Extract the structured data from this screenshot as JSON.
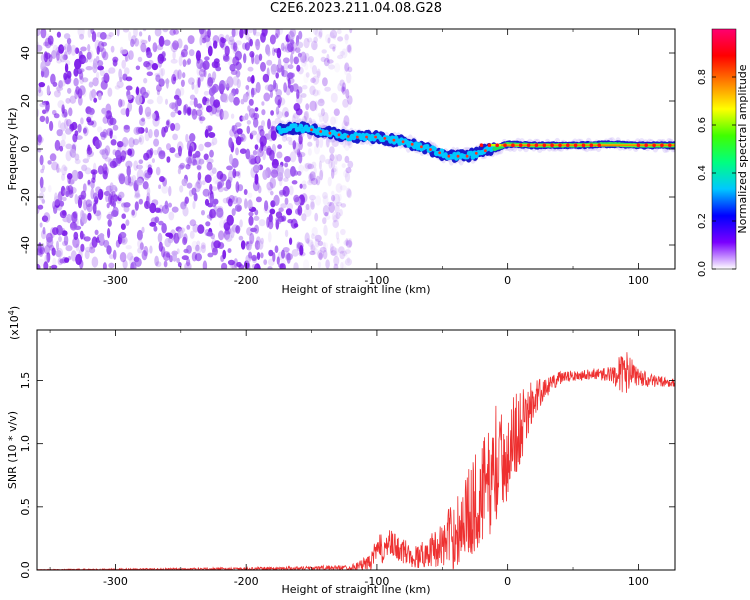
{
  "figure_title": "C2E6.2023.211.04.08.G28",
  "chart_data": [
    {
      "type": "heatmap",
      "title": "",
      "xlabel": "Height of straight line (km)",
      "ylabel": "Frequency (Hz)",
      "xlim": [
        -360,
        128
      ],
      "ylim": [
        -50,
        50
      ],
      "xticks": [
        -300,
        -200,
        -100,
        0,
        100
      ],
      "yticks": [
        -40,
        -20,
        0,
        20,
        40
      ],
      "colorbar": {
        "label": "Normalized spectral amplitude",
        "range": [
          0,
          1
        ],
        "ticks": [
          "0.0",
          "0.2",
          "0.4",
          "0.6",
          "0.8"
        ],
        "tick_values": [
          0,
          0.2,
          0.4,
          0.6,
          0.8
        ],
        "colors": [
          "#ffffff",
          "#7a00ff",
          "#0000ff",
          "#00c8ff",
          "#00ff80",
          "#40ff00",
          "#ffff00",
          "#ff8000",
          "#ff0000",
          "#ff0070"
        ]
      },
      "noise_region": {
        "x_range": [
          -360,
          -120
        ],
        "color": "#7b1ae8"
      },
      "signal_trace": {
        "x": [
          -175,
          -160,
          -140,
          -120,
          -100,
          -80,
          -60,
          -45,
          -30,
          -20,
          -10,
          0,
          20,
          50,
          80,
          95,
          110,
          128
        ],
        "frequency": [
          8,
          9,
          7,
          5,
          5,
          3,
          0,
          -3,
          -3,
          -1,
          0,
          2,
          1.5,
          1.5,
          2,
          1.5,
          1.5,
          1.5
        ]
      }
    },
    {
      "type": "line",
      "title": "",
      "xlabel": "Height of straight line (km)",
      "ylabel": "SNR (10 * v/v)",
      "scale_label": "(x10",
      "scale_exponent": "4",
      "scale_close": ")",
      "xlim": [
        -360,
        128
      ],
      "ylim": [
        0,
        1.9
      ],
      "xticks": [
        -300,
        -200,
        -100,
        0,
        100
      ],
      "yticks": [
        "0.0",
        "0.5",
        "1.0",
        "1.5"
      ],
      "ytick_values": [
        0,
        0.5,
        1.0,
        1.5
      ],
      "color": "#ee3030",
      "envelope": {
        "x": [
          -360,
          -200,
          -120,
          -105,
          -100,
          -90,
          -80,
          -70,
          -60,
          -50,
          -40,
          -30,
          -20,
          -10,
          0,
          10,
          20,
          30,
          40,
          60,
          80,
          90,
          100,
          110,
          128
        ],
        "mean": [
          0.0,
          0.01,
          0.02,
          0.06,
          0.15,
          0.2,
          0.15,
          0.1,
          0.15,
          0.2,
          0.3,
          0.45,
          0.6,
          0.75,
          0.95,
          1.15,
          1.35,
          1.45,
          1.52,
          1.55,
          1.55,
          1.56,
          1.52,
          1.5,
          1.48
        ],
        "amp": [
          0.005,
          0.01,
          0.02,
          0.06,
          0.12,
          0.12,
          0.1,
          0.1,
          0.12,
          0.18,
          0.3,
          0.35,
          0.45,
          0.4,
          0.4,
          0.3,
          0.15,
          0.08,
          0.05,
          0.04,
          0.06,
          0.2,
          0.08,
          0.05,
          0.03
        ]
      }
    }
  ]
}
